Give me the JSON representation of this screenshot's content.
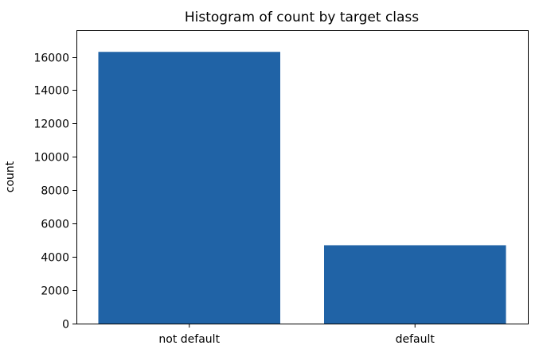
{
  "chart_data": {
    "type": "bar",
    "title": "Histogram of count by target class",
    "xlabel": "",
    "ylabel": "count",
    "categories": [
      "not default",
      "default"
    ],
    "values": [
      16300,
      4700
    ],
    "ylim": [
      0,
      17600
    ],
    "yticks": [
      0,
      2000,
      4000,
      6000,
      8000,
      10000,
      12000,
      14000,
      16000
    ],
    "grid": false,
    "legend": "none",
    "colors": {
      "bar": "#2063a6",
      "axis": "#000000",
      "background": "#ffffff"
    }
  }
}
